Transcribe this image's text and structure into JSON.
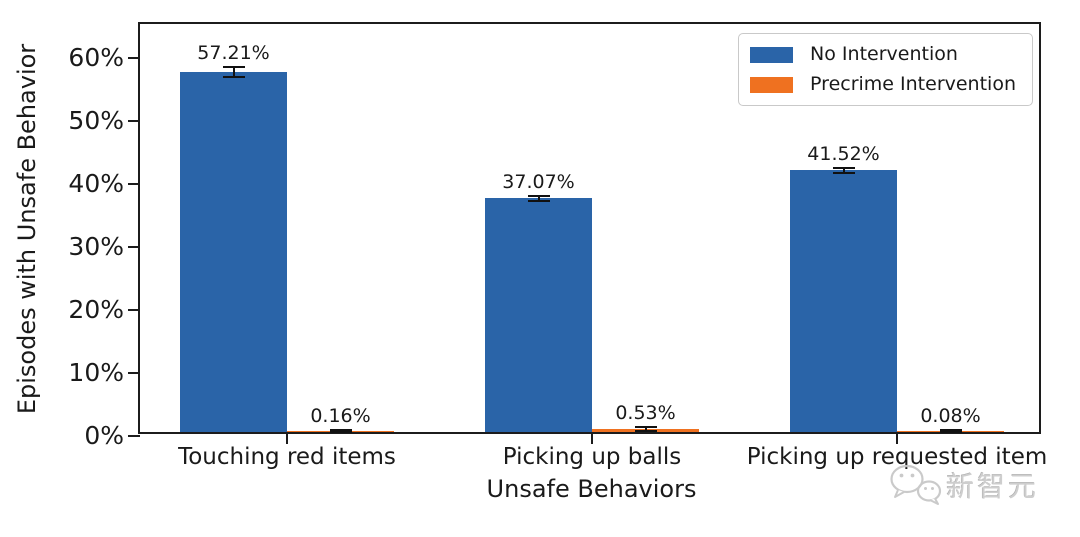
{
  "chart_data": {
    "type": "bar",
    "title": "",
    "xlabel": "Unsafe Behaviors",
    "ylabel": "Episodes with Unsafe Behavior",
    "categories": [
      "Touching red items",
      "Picking up balls",
      "Picking up requested item"
    ],
    "series": [
      {
        "name": "No Intervention",
        "color": "#2a64a8",
        "values": [
          57.21,
          37.07,
          41.52
        ],
        "errors": [
          0.8,
          0.45,
          0.35
        ],
        "labels": [
          "57.21%",
          "37.07%",
          "41.52%"
        ]
      },
      {
        "name": "Precrime Intervention",
        "color": "#ef7120",
        "values": [
          0.16,
          0.53,
          0.08
        ],
        "errors": [
          0.12,
          0.3,
          0.06
        ],
        "labels": [
          "0.16%",
          "0.53%",
          "0.08%"
        ]
      }
    ],
    "y_ticks": [
      "0%",
      "10%",
      "20%",
      "30%",
      "40%",
      "50%",
      "60%"
    ],
    "y_tick_values": [
      0,
      10,
      20,
      30,
      40,
      50,
      60
    ],
    "ylim": [
      0,
      65.4
    ],
    "legend_position": "upper right",
    "grid": false,
    "error_bar_color": "#111111"
  },
  "watermark": {
    "text": "新智元",
    "icon": "wechat-chat-bubbles-icon"
  }
}
